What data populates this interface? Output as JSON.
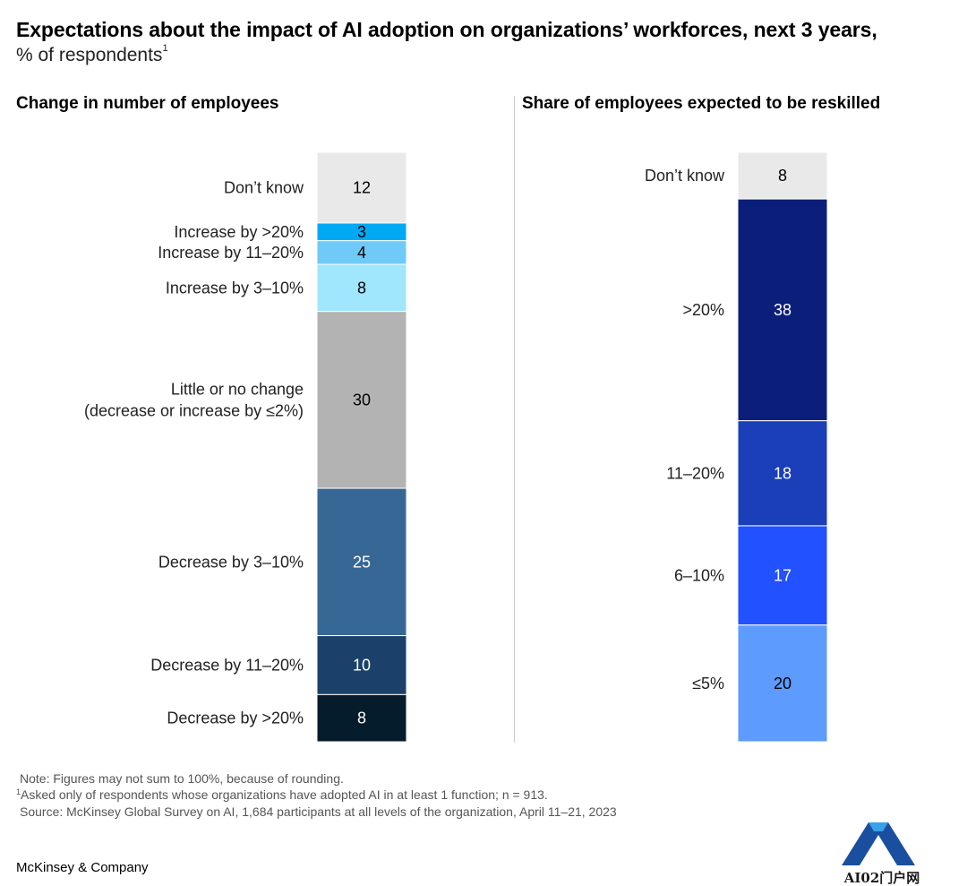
{
  "title": "Expectations about the impact of AI adoption on organizations’ workforces, next 3 years,",
  "subtitle": "% of respondents",
  "subtitle_marker": "1",
  "chart_data": [
    {
      "type": "bar",
      "stacked": true,
      "title": "Change in number of employees",
      "categories": [
        "Don’t know",
        "Increase by >20%",
        "Increase by 11–20%",
        "Increase by 3–10%",
        "Little or no change (decrease or increase by ≤2%)",
        "Decrease by 3–10%",
        "Decrease by 11–20%",
        "Decrease by >20%"
      ],
      "label_lines": [
        [
          "Don’t know"
        ],
        [
          "Increase by >20%"
        ],
        [
          "Increase by 11–20%"
        ],
        [
          "Increase by 3–10%"
        ],
        [
          "Little or no change",
          "(decrease or increase by ≤2%)"
        ],
        [
          "Decrease by 3–10%"
        ],
        [
          "Decrease by 11–20%"
        ],
        [
          "Decrease by >20%"
        ]
      ],
      "values": [
        12,
        3,
        4,
        8,
        30,
        25,
        10,
        8
      ],
      "colors": [
        "#e9e9e9",
        "#00a9f4",
        "#6fcaf7",
        "#a0e6fd",
        "#b3b3b3",
        "#376795",
        "#1b416a",
        "#051c2c"
      ],
      "text_colors": [
        "#000000",
        "#000000",
        "#000000",
        "#000000",
        "#000000",
        "#ffffff",
        "#ffffff",
        "#ffffff"
      ]
    },
    {
      "type": "bar",
      "stacked": true,
      "title": "Share of employees expected to be reskilled",
      "categories": [
        "Don’t know",
        ">20%",
        "11–20%",
        "6–10%",
        "≤5%"
      ],
      "label_lines": [
        [
          "Don’t know"
        ],
        [
          ">20%"
        ],
        [
          "11–20%"
        ],
        [
          "6–10%"
        ],
        [
          "≤5%"
        ]
      ],
      "values": [
        8,
        38,
        18,
        17,
        20
      ],
      "colors": [
        "#e9e9e9",
        "#0b1f7a",
        "#1b3fb8",
        "#2251ff",
        "#5d9bff"
      ],
      "text_colors": [
        "#000000",
        "#ffffff",
        "#ffffff",
        "#ffffff",
        "#000000"
      ]
    }
  ],
  "footer": {
    "note": "Note: Figures may not sum to 100%, because of rounding.",
    "footnote_marker": "1",
    "footnote": "Asked only of respondents whose organizations have adopted AI in at least 1 function; n = 913.",
    "source": "Source: McKinsey Global Survey on AI, 1,684 participants at all levels of the organization, April 11–21, 2023",
    "brand": "McKinsey & Company"
  },
  "watermark": {
    "text": "AI02门户网",
    "colors": [
      "#1a4fa0",
      "#3aa0e8"
    ]
  }
}
